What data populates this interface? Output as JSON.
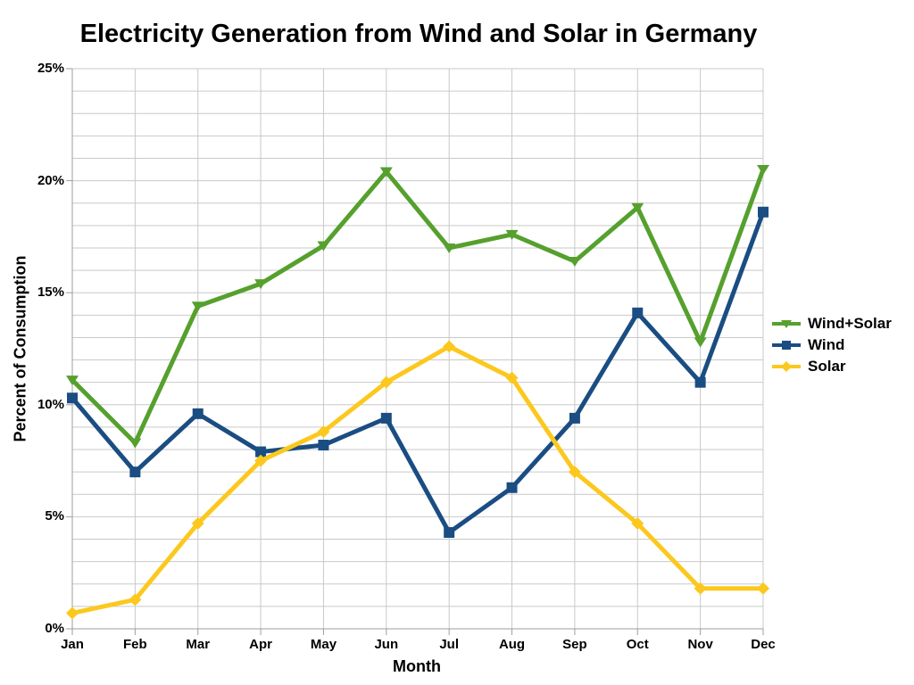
{
  "chart_data": {
    "type": "line",
    "title": "Electricity Generation from Wind and Solar in Germany",
    "xlabel": "Month",
    "ylabel": "Percent of Consumption",
    "categories": [
      "Jan",
      "Feb",
      "Mar",
      "Apr",
      "May",
      "Jun",
      "Jul",
      "Aug",
      "Sep",
      "Oct",
      "Nov",
      "Dec"
    ],
    "series": [
      {
        "name": "Wind+Solar",
        "marker": "triangle-down",
        "color": "#56a02e",
        "values": [
          11.1,
          8.3,
          14.4,
          15.4,
          17.1,
          20.4,
          17.0,
          17.6,
          16.4,
          18.8,
          12.8,
          20.5
        ]
      },
      {
        "name": "Wind",
        "marker": "square",
        "color": "#1a4d82",
        "values": [
          10.3,
          7.0,
          9.6,
          7.9,
          8.2,
          9.4,
          4.3,
          6.3,
          9.4,
          14.1,
          11.0,
          18.6
        ]
      },
      {
        "name": "Solar",
        "marker": "diamond",
        "color": "#fcc81e",
        "values": [
          0.7,
          1.3,
          4.7,
          7.5,
          8.8,
          11.0,
          12.6,
          11.2,
          7.0,
          4.7,
          1.8,
          1.8
        ]
      }
    ],
    "ylim": [
      0,
      25
    ],
    "y_major_tick_labels": [
      "0%",
      "5%",
      "10%",
      "15%",
      "20%",
      "25%"
    ],
    "y_major_tick_values": [
      0,
      5,
      10,
      15,
      20,
      25
    ],
    "y_minor_tick_step": 1,
    "grid": "on",
    "legend_position": "right",
    "grid_color": "#c9c9c9",
    "axis_color": "#9e9e9e",
    "text_color": "#000000",
    "background_color": "#ffffff"
  }
}
